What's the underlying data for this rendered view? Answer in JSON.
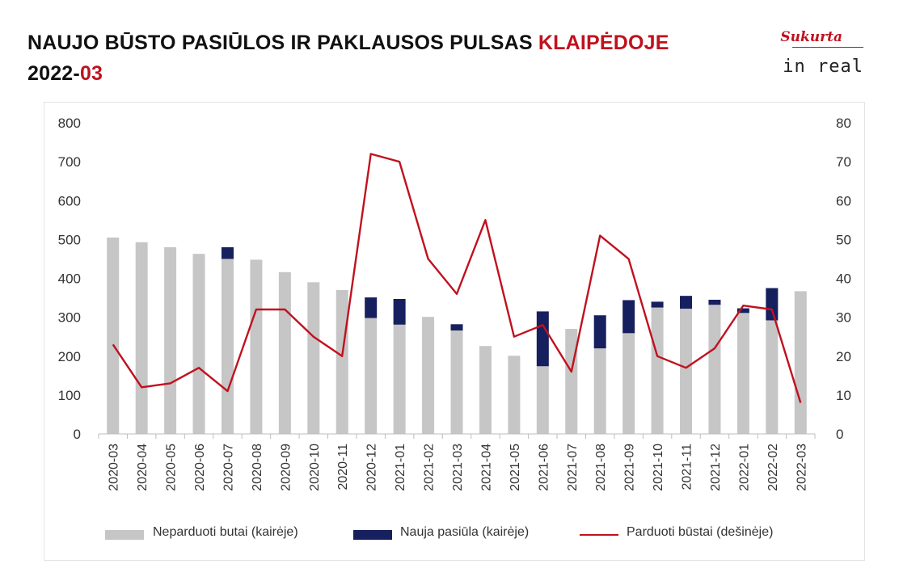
{
  "header": {
    "title_main": "NAUJO BŪSTO PASIŪLOS IR PAKLAUSOS PULSAS ",
    "title_city": "KLAIPĖDOJE",
    "period_year": "2022-",
    "period_month": "03"
  },
  "logo": {
    "script_text": "Sukurta",
    "main_text": "in real"
  },
  "colors": {
    "unsold": "#c6c6c6",
    "new_supply": "#17205e",
    "sold": "#c0111f",
    "accent": "#c0111f"
  },
  "chart_data": {
    "type": "bar",
    "stacked": true,
    "categories": [
      "2020-03",
      "2020-04",
      "2020-05",
      "2020-06",
      "2020-07",
      "2020-08",
      "2020-09",
      "2020-10",
      "2020-11",
      "2020-12",
      "2021-01",
      "2021-02",
      "2021-03",
      "2021-04",
      "2021-05",
      "2021-06",
      "2021-07",
      "2021-08",
      "2021-09",
      "2021-10",
      "2021-11",
      "2021-12",
      "2022-01",
      "2022-02",
      "2022-03"
    ],
    "series": [
      {
        "name": "Neparduoti butai (kairėje)",
        "type": "bar",
        "axis": "left",
        "values": [
          505,
          493,
          480,
          463,
          450,
          448,
          416,
          390,
          370,
          298,
          281,
          301,
          266,
          226,
          201,
          174,
          270,
          220,
          259,
          325,
          322,
          332,
          311,
          292,
          367
        ]
      },
      {
        "name": "Nauja pasiūla (kairėje)",
        "type": "bar",
        "axis": "left",
        "values": [
          0,
          0,
          0,
          0,
          30,
          0,
          0,
          0,
          0,
          53,
          66,
          0,
          16,
          0,
          0,
          141,
          0,
          85,
          85,
          15,
          33,
          13,
          12,
          83,
          0
        ]
      },
      {
        "name": "Parduoti būstai (dešinėje)",
        "type": "line",
        "axis": "right",
        "values": [
          23,
          12,
          13,
          17,
          11,
          32,
          32,
          25,
          20,
          72,
          70,
          45,
          36,
          55,
          25,
          28,
          16,
          51,
          45,
          20,
          17,
          22,
          33,
          32,
          8
        ]
      }
    ],
    "y_left": {
      "min": 0,
      "max": 800,
      "ticks": [
        0,
        100,
        200,
        300,
        400,
        500,
        600,
        700,
        800
      ]
    },
    "y_right": {
      "min": 0,
      "max": 80,
      "ticks": [
        0,
        10,
        20,
        30,
        40,
        50,
        60,
        70,
        80
      ]
    },
    "grid": false,
    "legend_position": "bottom"
  }
}
